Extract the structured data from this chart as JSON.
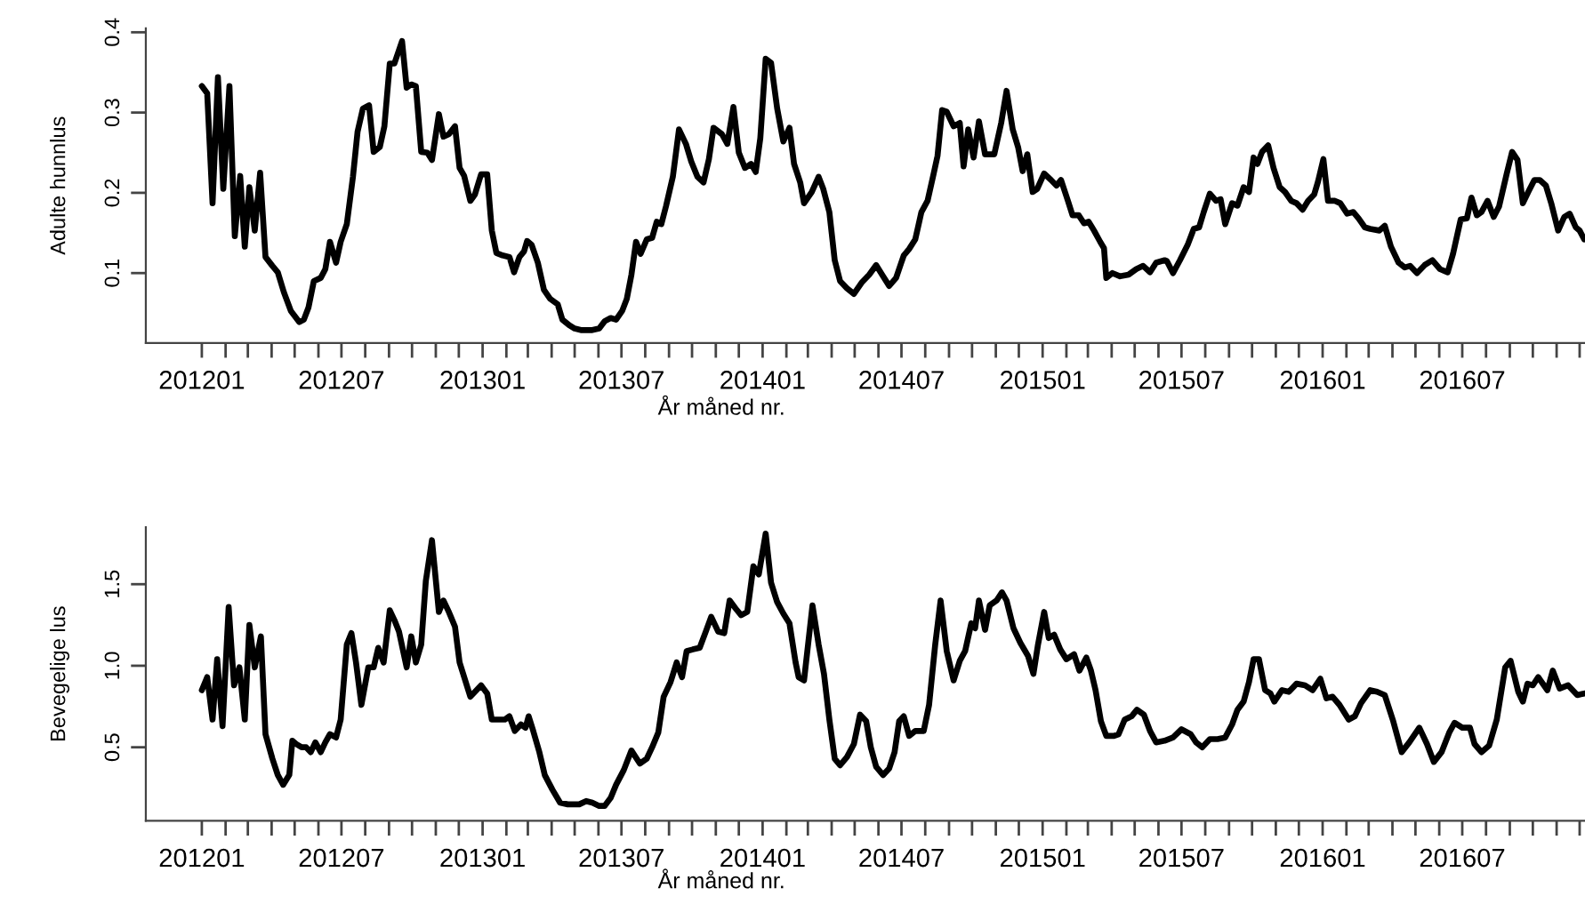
{
  "chart_data": [
    {
      "type": "line",
      "ylabel": "Adulte hunnlus",
      "xlabel": "År måned nr.",
      "xlim": [
        "2011-10-20",
        "2016-12-08"
      ],
      "ylim": [
        0.013,
        0.405
      ],
      "yticks": [
        0.1,
        0.2,
        0.3,
        0.4
      ],
      "xticks": [
        {
          "value": "2012-01",
          "label": "201201"
        },
        {
          "value": "2012-02",
          "label": null
        },
        {
          "value": "2012-03",
          "label": null
        },
        {
          "value": "2012-04",
          "label": null
        },
        {
          "value": "2012-05",
          "label": null
        },
        {
          "value": "2012-06",
          "label": null
        },
        {
          "value": "2012-07",
          "label": "201207"
        },
        {
          "value": "2012-08",
          "label": null
        },
        {
          "value": "2012-09",
          "label": null
        },
        {
          "value": "2012-10",
          "label": null
        },
        {
          "value": "2012-11",
          "label": null
        },
        {
          "value": "2012-12",
          "label": null
        },
        {
          "value": "2013-01",
          "label": "201301"
        },
        {
          "value": "2013-02",
          "label": null
        },
        {
          "value": "2013-03",
          "label": null
        },
        {
          "value": "2013-04",
          "label": null
        },
        {
          "value": "2013-05",
          "label": null
        },
        {
          "value": "2013-06",
          "label": null
        },
        {
          "value": "2013-07",
          "label": "201307"
        },
        {
          "value": "2013-08",
          "label": null
        },
        {
          "value": "2013-09",
          "label": null
        },
        {
          "value": "2013-10",
          "label": null
        },
        {
          "value": "2013-11",
          "label": null
        },
        {
          "value": "2013-12",
          "label": null
        },
        {
          "value": "2014-01",
          "label": "201401"
        },
        {
          "value": "2014-02",
          "label": null
        },
        {
          "value": "2014-03",
          "label": null
        },
        {
          "value": "2014-04",
          "label": null
        },
        {
          "value": "2014-05",
          "label": null
        },
        {
          "value": "2014-06",
          "label": null
        },
        {
          "value": "2014-07",
          "label": "201407"
        },
        {
          "value": "2014-08",
          "label": null
        },
        {
          "value": "2014-09",
          "label": null
        },
        {
          "value": "2014-10",
          "label": null
        },
        {
          "value": "2014-11",
          "label": null
        },
        {
          "value": "2014-12",
          "label": null
        },
        {
          "value": "2015-01",
          "label": "201501"
        },
        {
          "value": "2015-02",
          "label": null
        },
        {
          "value": "2015-03",
          "label": null
        },
        {
          "value": "2015-04",
          "label": null
        },
        {
          "value": "2015-05",
          "label": null
        },
        {
          "value": "2015-06",
          "label": null
        },
        {
          "value": "2015-07",
          "label": "201507"
        },
        {
          "value": "2015-08",
          "label": null
        },
        {
          "value": "2015-09",
          "label": null
        },
        {
          "value": "2015-10",
          "label": null
        },
        {
          "value": "2015-11",
          "label": null
        },
        {
          "value": "2015-12",
          "label": null
        },
        {
          "value": "2016-01",
          "label": "201601"
        },
        {
          "value": "2016-02",
          "label": null
        },
        {
          "value": "2016-03",
          "label": null
        },
        {
          "value": "2016-04",
          "label": null
        },
        {
          "value": "2016-05",
          "label": null
        },
        {
          "value": "2016-06",
          "label": null
        },
        {
          "value": "2016-07",
          "label": "201607"
        },
        {
          "value": "2016-08",
          "label": null
        },
        {
          "value": "2016-09",
          "label": null
        },
        {
          "value": "2016-10",
          "label": null
        },
        {
          "value": "2016-11",
          "label": null
        },
        {
          "value": "2016-12",
          "label": null
        }
      ],
      "grid": false,
      "marker": "none",
      "line_style": "solid",
      "series": [
        {
          "color": "#000000",
          "x": [
            "2012-01-01",
            "2012-01-08",
            "2012-01-15",
            "2012-01-22",
            "2012-01-29",
            "2012-02-06",
            "2012-02-13",
            "2012-02-20",
            "2012-02-26",
            "2012-03-03",
            "2012-03-10",
            "2012-03-17",
            "2012-03-24",
            "2012-04-02",
            "2012-04-09",
            "2012-04-17",
            "2012-04-26",
            "2012-05-07",
            "2012-05-13",
            "2012-05-19",
            "2012-05-26",
            "2012-06-04",
            "2012-06-10",
            "2012-06-16",
            "2012-06-24",
            "2012-06-30",
            "2012-07-08",
            "2012-07-16",
            "2012-07-22",
            "2012-07-29",
            "2012-08-06",
            "2012-08-12",
            "2012-08-20",
            "2012-08-26",
            "2012-09-02",
            "2012-09-08",
            "2012-09-18",
            "2012-09-24",
            "2012-09-30",
            "2012-10-06",
            "2012-10-13",
            "2012-10-21",
            "2012-10-27",
            "2012-11-05",
            "2012-11-11",
            "2012-11-18",
            "2012-11-26",
            "2012-12-02",
            "2012-12-08",
            "2012-12-16",
            "2012-12-22",
            "2012-12-30",
            "2013-01-07",
            "2013-01-13",
            "2013-01-19",
            "2013-01-27",
            "2013-02-05",
            "2013-02-11",
            "2013-02-18",
            "2013-02-24",
            "2013-02-28",
            "2013-03-06",
            "2013-03-14",
            "2013-03-22",
            "2013-03-30",
            "2013-04-09",
            "2013-04-15",
            "2013-04-24",
            "2013-05-01",
            "2013-05-09",
            "2013-05-16",
            "2013-05-24",
            "2013-06-02",
            "2013-06-09",
            "2013-06-17",
            "2013-06-24",
            "2013-07-02",
            "2013-07-08",
            "2013-07-14",
            "2013-07-20",
            "2013-07-26",
            "2013-08-03",
            "2013-08-10",
            "2013-08-16",
            "2013-08-22",
            "2013-08-28",
            "2013-09-06",
            "2013-09-14",
            "2013-09-23",
            "2013-09-30",
            "2013-10-08",
            "2013-10-16",
            "2013-10-23",
            "2013-10-29",
            "2013-11-09",
            "2013-11-16",
            "2013-11-24",
            "2013-12-01",
            "2013-12-09",
            "2013-12-17",
            "2013-12-23",
            "2013-12-29",
            "2014-01-05",
            "2014-01-12",
            "2014-01-20",
            "2014-01-28",
            "2014-02-05",
            "2014-02-11",
            "2014-02-19",
            "2014-02-24",
            "2014-03-06",
            "2014-03-15",
            "2014-03-21",
            "2014-03-29",
            "2014-04-05",
            "2014-04-12",
            "2014-04-21",
            "2014-04-30",
            "2014-05-10",
            "2014-05-20",
            "2014-05-29",
            "2014-06-07",
            "2014-06-15",
            "2014-06-24",
            "2014-07-04",
            "2014-07-11",
            "2014-07-19",
            "2014-07-27",
            "2014-08-04",
            "2014-08-12",
            "2014-08-17",
            "2014-08-23",
            "2014-08-29",
            "2014-09-07",
            "2014-09-15",
            "2014-09-20",
            "2014-09-26",
            "2014-10-03",
            "2014-10-10",
            "2014-10-18",
            "2014-10-30",
            "2014-11-08",
            "2014-11-15",
            "2014-11-23",
            "2014-11-30",
            "2014-12-06",
            "2014-12-12",
            "2014-12-19",
            "2014-12-25",
            "2015-01-03",
            "2015-01-12",
            "2015-01-19",
            "2015-01-25",
            "2015-02-03",
            "2015-02-09",
            "2015-02-17",
            "2015-02-24",
            "2015-03-02",
            "2015-03-09",
            "2015-03-17",
            "2015-03-22",
            "2015-03-25",
            "2015-04-02",
            "2015-04-12",
            "2015-04-23",
            "2015-05-03",
            "2015-05-12",
            "2015-05-21",
            "2015-05-29",
            "2015-06-09",
            "2015-06-12",
            "2015-06-20",
            "2015-06-29",
            "2015-07-09",
            "2015-07-17",
            "2015-07-24",
            "2015-07-30",
            "2015-08-07",
            "2015-08-15",
            "2015-08-21",
            "2015-08-27",
            "2015-09-05",
            "2015-09-12",
            "2015-09-20",
            "2015-09-27",
            "2015-10-03",
            "2015-10-08",
            "2015-10-14",
            "2015-10-22",
            "2015-10-29",
            "2015-11-06",
            "2015-11-13",
            "2015-11-21",
            "2015-11-28",
            "2015-12-06",
            "2015-12-13",
            "2015-12-21",
            "2015-12-26",
            "2016-01-02",
            "2016-01-08",
            "2016-01-17",
            "2016-01-24",
            "2016-02-02",
            "2016-02-10",
            "2016-02-17",
            "2016-02-25",
            "2016-03-03",
            "2016-03-15",
            "2016-03-22",
            "2016-03-30",
            "2016-04-09",
            "2016-04-17",
            "2016-04-24",
            "2016-05-03",
            "2016-05-13",
            "2016-05-23",
            "2016-06-02",
            "2016-06-12",
            "2016-06-19",
            "2016-06-29",
            "2016-07-07",
            "2016-07-13",
            "2016-07-20",
            "2016-07-26",
            "2016-08-03",
            "2016-08-11",
            "2016-08-18",
            "2016-08-28",
            "2016-09-04",
            "2016-09-11",
            "2016-09-18",
            "2016-09-25",
            "2016-10-03",
            "2016-10-10",
            "2016-10-18",
            "2016-10-25",
            "2016-11-03",
            "2016-11-11",
            "2016-11-18",
            "2016-11-26",
            "2016-12-01",
            "2016-12-07"
          ],
          "values": [
            0.333,
            0.324,
            0.187,
            0.344,
            0.205,
            0.333,
            0.146,
            0.221,
            0.133,
            0.207,
            0.153,
            0.225,
            0.12,
            0.109,
            0.101,
            0.076,
            0.053,
            0.039,
            0.042,
            0.057,
            0.09,
            0.094,
            0.105,
            0.139,
            0.113,
            0.139,
            0.161,
            0.22,
            0.276,
            0.305,
            0.309,
            0.251,
            0.257,
            0.283,
            0.361,
            0.361,
            0.389,
            0.331,
            0.335,
            0.333,
            0.251,
            0.25,
            0.241,
            0.298,
            0.27,
            0.273,
            0.283,
            0.231,
            0.221,
            0.19,
            0.198,
            0.223,
            0.223,
            0.153,
            0.125,
            0.122,
            0.12,
            0.101,
            0.12,
            0.127,
            0.14,
            0.135,
            0.113,
            0.079,
            0.068,
            0.061,
            0.042,
            0.035,
            0.031,
            0.029,
            0.029,
            0.029,
            0.031,
            0.04,
            0.044,
            0.042,
            0.053,
            0.068,
            0.098,
            0.139,
            0.124,
            0.142,
            0.144,
            0.164,
            0.161,
            0.183,
            0.22,
            0.279,
            0.261,
            0.239,
            0.22,
            0.213,
            0.242,
            0.281,
            0.273,
            0.261,
            0.307,
            0.25,
            0.231,
            0.236,
            0.226,
            0.268,
            0.367,
            0.362,
            0.305,
            0.264,
            0.281,
            0.236,
            0.213,
            0.187,
            0.201,
            0.22,
            0.205,
            0.176,
            0.116,
            0.09,
            0.081,
            0.074,
            0.088,
            0.098,
            0.11,
            0.096,
            0.084,
            0.094,
            0.122,
            0.13,
            0.142,
            0.176,
            0.19,
            0.224,
            0.246,
            0.303,
            0.301,
            0.283,
            0.287,
            0.233,
            0.279,
            0.244,
            0.289,
            0.248,
            0.248,
            0.287,
            0.327,
            0.279,
            0.257,
            0.227,
            0.248,
            0.201,
            0.205,
            0.224,
            0.216,
            0.209,
            0.216,
            0.19,
            0.172,
            0.172,
            0.162,
            0.164,
            0.153,
            0.139,
            0.131,
            0.094,
            0.1,
            0.096,
            0.098,
            0.105,
            0.109,
            0.101,
            0.113,
            0.116,
            0.115,
            0.1,
            0.116,
            0.135,
            0.155,
            0.157,
            0.176,
            0.199,
            0.19,
            0.192,
            0.161,
            0.187,
            0.184,
            0.207,
            0.201,
            0.244,
            0.236,
            0.251,
            0.259,
            0.231,
            0.207,
            0.201,
            0.19,
            0.187,
            0.179,
            0.19,
            0.198,
            0.214,
            0.242,
            0.19,
            0.19,
            0.187,
            0.174,
            0.176,
            0.168,
            0.157,
            0.155,
            0.153,
            0.159,
            0.133,
            0.113,
            0.107,
            0.109,
            0.1,
            0.11,
            0.116,
            0.105,
            0.101,
            0.124,
            0.167,
            0.168,
            0.194,
            0.172,
            0.176,
            0.19,
            0.17,
            0.183,
            0.224,
            0.251,
            0.241,
            0.187,
            0.201,
            0.216,
            0.216,
            0.209,
            0.187,
            0.153,
            0.17,
            0.174,
            0.157,
            0.153,
            0.142
          ]
        }
      ]
    },
    {
      "type": "line",
      "ylabel": "Bevegelige lus",
      "xlabel": "År måned nr.",
      "xlim": [
        "2011-10-20",
        "2016-12-08"
      ],
      "ylim": [
        0.049,
        1.85
      ],
      "yticks": [
        0.5,
        {
          "value": 1,
          "label": "1.0"
        },
        1.5
      ],
      "xticks": [
        {
          "value": "2012-01",
          "label": "201201"
        },
        {
          "value": "2012-02",
          "label": null
        },
        {
          "value": "2012-03",
          "label": null
        },
        {
          "value": "2012-04",
          "label": null
        },
        {
          "value": "2012-05",
          "label": null
        },
        {
          "value": "2012-06",
          "label": null
        },
        {
          "value": "2012-07",
          "label": "201207"
        },
        {
          "value": "2012-08",
          "label": null
        },
        {
          "value": "2012-09",
          "label": null
        },
        {
          "value": "2012-10",
          "label": null
        },
        {
          "value": "2012-11",
          "label": null
        },
        {
          "value": "2012-12",
          "label": null
        },
        {
          "value": "2013-01",
          "label": "201301"
        },
        {
          "value": "2013-02",
          "label": null
        },
        {
          "value": "2013-03",
          "label": null
        },
        {
          "value": "2013-04",
          "label": null
        },
        {
          "value": "2013-05",
          "label": null
        },
        {
          "value": "2013-06",
          "label": null
        },
        {
          "value": "2013-07",
          "label": "201307"
        },
        {
          "value": "2013-08",
          "label": null
        },
        {
          "value": "2013-09",
          "label": null
        },
        {
          "value": "2013-10",
          "label": null
        },
        {
          "value": "2013-11",
          "label": null
        },
        {
          "value": "2013-12",
          "label": null
        },
        {
          "value": "2014-01",
          "label": "201401"
        },
        {
          "value": "2014-02",
          "label": null
        },
        {
          "value": "2014-03",
          "label": null
        },
        {
          "value": "2014-04",
          "label": null
        },
        {
          "value": "2014-05",
          "label": null
        },
        {
          "value": "2014-06",
          "label": null
        },
        {
          "value": "2014-07",
          "label": "201407"
        },
        {
          "value": "2014-08",
          "label": null
        },
        {
          "value": "2014-09",
          "label": null
        },
        {
          "value": "2014-10",
          "label": null
        },
        {
          "value": "2014-11",
          "label": null
        },
        {
          "value": "2014-12",
          "label": null
        },
        {
          "value": "2015-01",
          "label": "201501"
        },
        {
          "value": "2015-02",
          "label": null
        },
        {
          "value": "2015-03",
          "label": null
        },
        {
          "value": "2015-04",
          "label": null
        },
        {
          "value": "2015-05",
          "label": null
        },
        {
          "value": "2015-06",
          "label": null
        },
        {
          "value": "2015-07",
          "label": "201507"
        },
        {
          "value": "2015-08",
          "label": null
        },
        {
          "value": "2015-09",
          "label": null
        },
        {
          "value": "2015-10",
          "label": null
        },
        {
          "value": "2015-11",
          "label": null
        },
        {
          "value": "2015-12",
          "label": null
        },
        {
          "value": "2016-01",
          "label": "201601"
        },
        {
          "value": "2016-02",
          "label": null
        },
        {
          "value": "2016-03",
          "label": null
        },
        {
          "value": "2016-04",
          "label": null
        },
        {
          "value": "2016-05",
          "label": null
        },
        {
          "value": "2016-06",
          "label": null
        },
        {
          "value": "2016-07",
          "label": "201607"
        },
        {
          "value": "2016-08",
          "label": null
        },
        {
          "value": "2016-09",
          "label": null
        },
        {
          "value": "2016-10",
          "label": null
        },
        {
          "value": "2016-11",
          "label": null
        },
        {
          "value": "2016-12",
          "label": null
        }
      ],
      "grid": false,
      "marker": "none",
      "line_style": "solid",
      "series": [
        {
          "color": "#000000",
          "x": [
            "2012-01-01",
            "2012-01-08",
            "2012-01-15",
            "2012-01-21",
            "2012-01-28",
            "2012-02-05",
            "2012-02-12",
            "2012-02-19",
            "2012-02-26",
            "2012-03-03",
            "2012-03-10",
            "2012-03-18",
            "2012-03-24",
            "2012-04-02",
            "2012-04-09",
            "2012-04-16",
            "2012-04-24",
            "2012-04-28",
            "2012-05-03",
            "2012-05-10",
            "2012-05-16",
            "2012-05-22",
            "2012-05-28",
            "2012-06-04",
            "2012-06-10",
            "2012-06-16",
            "2012-06-24",
            "2012-06-30",
            "2012-07-08",
            "2012-07-14",
            "2012-07-20",
            "2012-07-27",
            "2012-08-05",
            "2012-08-12",
            "2012-08-18",
            "2012-08-25",
            "2012-09-02",
            "2012-09-08",
            "2012-09-14",
            "2012-09-24",
            "2012-09-30",
            "2012-10-06",
            "2012-10-13",
            "2012-10-19",
            "2012-10-27",
            "2012-11-05",
            "2012-11-11",
            "2012-11-18",
            "2012-11-26",
            "2012-12-02",
            "2012-12-08",
            "2012-12-16",
            "2012-12-24",
            "2012-12-30",
            "2013-01-07",
            "2013-01-13",
            "2013-01-21",
            "2013-01-30",
            "2013-02-05",
            "2013-02-12",
            "2013-02-20",
            "2013-02-26",
            "2013-03-02",
            "2013-03-08",
            "2013-03-16",
            "2013-03-23",
            "2013-04-02",
            "2013-04-12",
            "2013-04-22",
            "2013-04-30",
            "2013-05-07",
            "2013-05-16",
            "2013-05-24",
            "2013-06-02",
            "2013-06-09",
            "2013-06-17",
            "2013-06-24",
            "2013-07-04",
            "2013-07-14",
            "2013-07-25",
            "2013-08-03",
            "2013-08-10",
            "2013-08-18",
            "2013-08-25",
            "2013-09-03",
            "2013-09-11",
            "2013-09-18",
            "2013-09-24",
            "2013-10-02",
            "2013-10-11",
            "2013-10-19",
            "2013-10-26",
            "2013-11-04",
            "2013-11-12",
            "2013-11-19",
            "2013-11-27",
            "2013-12-04",
            "2013-12-12",
            "2013-12-20",
            "2013-12-27",
            "2014-01-05",
            "2014-01-12",
            "2014-01-20",
            "2014-01-28",
            "2014-02-05",
            "2014-02-13",
            "2014-02-17",
            "2014-02-24",
            "2014-03-07",
            "2014-03-15",
            "2014-03-22",
            "2014-03-29",
            "2014-04-05",
            "2014-04-12",
            "2014-04-21",
            "2014-04-30",
            "2014-05-08",
            "2014-05-16",
            "2014-05-22",
            "2014-05-29",
            "2014-06-07",
            "2014-06-15",
            "2014-06-22",
            "2014-06-28",
            "2014-07-04",
            "2014-07-11",
            "2014-07-19",
            "2014-07-30",
            "2014-08-06",
            "2014-08-14",
            "2014-08-21",
            "2014-08-29",
            "2014-09-07",
            "2014-09-15",
            "2014-09-22",
            "2014-09-30",
            "2014-10-05",
            "2014-10-10",
            "2014-10-18",
            "2014-10-24",
            "2014-11-02",
            "2014-11-09",
            "2014-11-15",
            "2014-11-24",
            "2014-12-03",
            "2014-12-13",
            "2014-12-20",
            "2014-12-26",
            "2015-01-03",
            "2015-01-09",
            "2015-01-16",
            "2015-01-24",
            "2015-02-01",
            "2015-02-11",
            "2015-02-18",
            "2015-02-27",
            "2015-03-05",
            "2015-03-11",
            "2015-03-18",
            "2015-03-25",
            "2015-04-04",
            "2015-04-10",
            "2015-04-18",
            "2015-04-27",
            "2015-05-04",
            "2015-05-13",
            "2015-05-21",
            "2015-05-29",
            "2015-06-09",
            "2015-06-20",
            "2015-07-01",
            "2015-07-13",
            "2015-07-20",
            "2015-07-28",
            "2015-08-07",
            "2015-08-17",
            "2015-08-27",
            "2015-09-05",
            "2015-09-12",
            "2015-09-20",
            "2015-09-27",
            "2015-10-03",
            "2015-10-10",
            "2015-10-18",
            "2015-10-25",
            "2015-10-30",
            "2015-11-09",
            "2015-11-18",
            "2015-11-28",
            "2015-12-09",
            "2015-12-19",
            "2015-12-29",
            "2016-01-06",
            "2016-01-14",
            "2016-01-23",
            "2016-02-04",
            "2016-02-12",
            "2016-02-20",
            "2016-03-03",
            "2016-03-12",
            "2016-03-22",
            "2016-04-02",
            "2016-04-13",
            "2016-04-23",
            "2016-05-06",
            "2016-05-16",
            "2016-05-25",
            "2016-06-04",
            "2016-06-14",
            "2016-06-21",
            "2016-07-01",
            "2016-07-11",
            "2016-07-17",
            "2016-07-26",
            "2016-08-05",
            "2016-08-15",
            "2016-08-26",
            "2016-09-02",
            "2016-09-12",
            "2016-09-18",
            "2016-09-24",
            "2016-10-01",
            "2016-10-08",
            "2016-10-20",
            "2016-10-27",
            "2016-11-05",
            "2016-11-16",
            "2016-11-28",
            "2016-12-07"
          ],
          "values": [
            0.85,
            0.93,
            0.67,
            1.04,
            0.63,
            1.36,
            0.88,
            0.99,
            0.67,
            1.25,
            0.99,
            1.18,
            0.58,
            0.43,
            0.33,
            0.27,
            0.33,
            0.54,
            0.52,
            0.5,
            0.5,
            0.47,
            0.53,
            0.47,
            0.53,
            0.58,
            0.56,
            0.67,
            1.13,
            1.2,
            1.02,
            0.76,
            0.99,
            0.99,
            1.11,
            1.02,
            1.34,
            1.28,
            1.21,
            0.99,
            1.18,
            1.02,
            1.13,
            1.52,
            1.77,
            1.33,
            1.4,
            1.33,
            1.24,
            1.02,
            0.93,
            0.81,
            0.85,
            0.88,
            0.83,
            0.67,
            0.67,
            0.67,
            0.69,
            0.6,
            0.64,
            0.62,
            0.69,
            0.6,
            0.47,
            0.33,
            0.24,
            0.16,
            0.15,
            0.15,
            0.15,
            0.17,
            0.16,
            0.14,
            0.14,
            0.19,
            0.27,
            0.36,
            0.48,
            0.4,
            0.43,
            0.5,
            0.59,
            0.81,
            0.9,
            1.02,
            0.93,
            1.09,
            1.1,
            1.11,
            1.21,
            1.3,
            1.21,
            1.2,
            1.4,
            1.35,
            1.31,
            1.33,
            1.61,
            1.56,
            1.81,
            1.51,
            1.39,
            1.32,
            1.26,
            1.02,
            0.93,
            0.91,
            1.37,
            1.13,
            0.95,
            0.67,
            0.43,
            0.39,
            0.44,
            0.52,
            0.7,
            0.66,
            0.5,
            0.38,
            0.33,
            0.37,
            0.47,
            0.66,
            0.69,
            0.57,
            0.6,
            0.6,
            0.76,
            1.13,
            1.4,
            1.09,
            0.91,
            1.03,
            1.09,
            1.26,
            1.23,
            1.4,
            1.22,
            1.37,
            1.4,
            1.45,
            1.4,
            1.23,
            1.14,
            1.06,
            0.95,
            1.13,
            1.33,
            1.17,
            1.19,
            1.1,
            1.04,
            1.07,
            0.97,
            1.05,
            0.97,
            0.85,
            0.66,
            0.57,
            0.57,
            0.58,
            0.67,
            0.69,
            0.73,
            0.7,
            0.6,
            0.53,
            0.54,
            0.56,
            0.61,
            0.58,
            0.53,
            0.5,
            0.55,
            0.55,
            0.56,
            0.64,
            0.73,
            0.78,
            0.9,
            1.04,
            1.04,
            0.85,
            0.83,
            0.78,
            0.85,
            0.84,
            0.89,
            0.88,
            0.85,
            0.92,
            0.8,
            0.81,
            0.76,
            0.67,
            0.69,
            0.77,
            0.85,
            0.84,
            0.82,
            0.66,
            0.47,
            0.53,
            0.62,
            0.52,
            0.41,
            0.47,
            0.59,
            0.65,
            0.62,
            0.62,
            0.52,
            0.47,
            0.51,
            0.67,
            0.99,
            1.03,
            0.84,
            0.78,
            0.89,
            0.88,
            0.93,
            0.85,
            0.97,
            0.86,
            0.88,
            0.82,
            0.83
          ]
        }
      ]
    }
  ]
}
